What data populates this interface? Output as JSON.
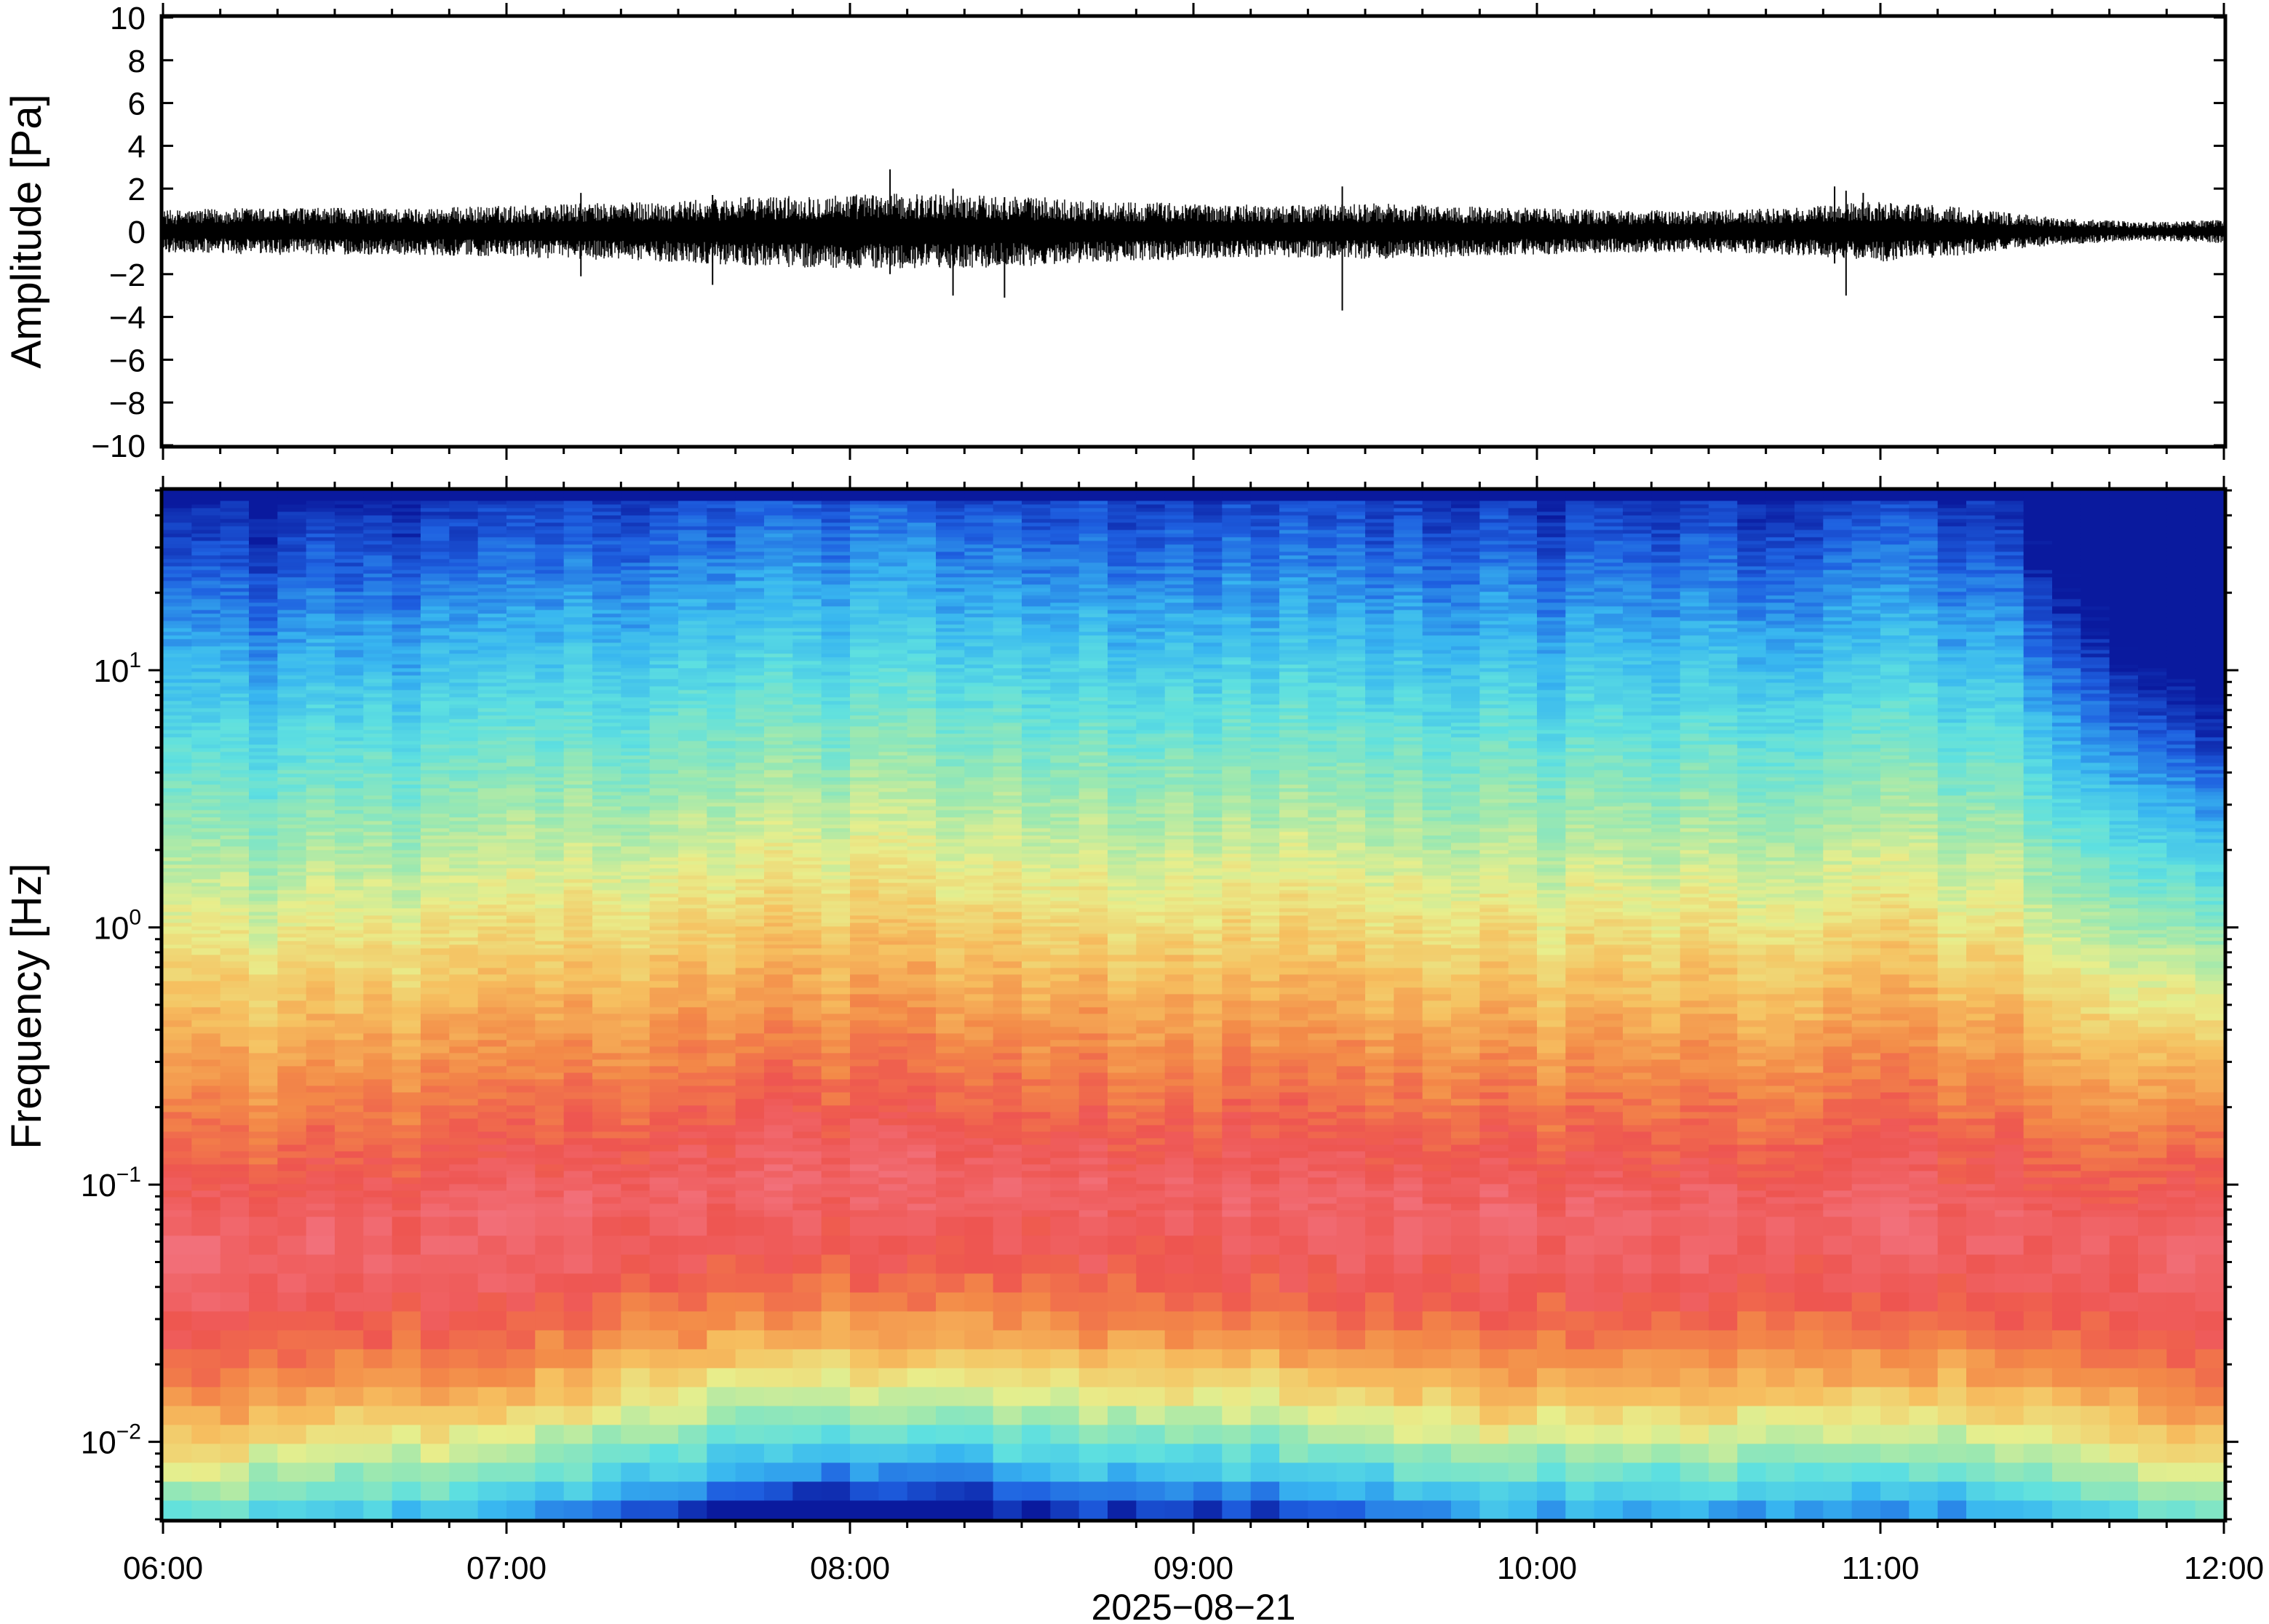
{
  "chart_data": [
    {
      "type": "line",
      "panel": "waveform",
      "ylabel": "Amplitude [Pa]",
      "ylim": [
        -10,
        10
      ],
      "yticks": [
        10,
        8,
        6,
        4,
        2,
        0,
        -2,
        -4,
        -6,
        -8,
        -10
      ],
      "ytick_labels": [
        "10",
        "8",
        "6",
        "4",
        "2",
        "0",
        "−2",
        "−4",
        "−6",
        "−8",
        "−10"
      ],
      "xlim": [
        "06:00",
        "12:00"
      ],
      "envelope": {
        "description_free_values": true,
        "x": [
          "06:00",
          "06:15",
          "06:30",
          "06:45",
          "07:00",
          "07:15",
          "07:30",
          "07:45",
          "08:00",
          "08:15",
          "08:30",
          "08:45",
          "09:00",
          "09:15",
          "09:30",
          "09:45",
          "10:00",
          "10:15",
          "10:30",
          "10:45",
          "11:00",
          "11:15",
          "11:30",
          "11:45",
          "12:00"
        ],
        "amplitude": [
          0.9,
          1.0,
          1.0,
          1.0,
          1.1,
          1.2,
          1.3,
          1.5,
          1.6,
          1.6,
          1.5,
          1.3,
          1.2,
          1.1,
          1.2,
          1.1,
          1.0,
          0.9,
          0.9,
          1.0,
          1.3,
          1.0,
          0.6,
          0.4,
          0.5
        ]
      },
      "spikes": [
        {
          "x": "07:13",
          "min": -2.1,
          "max": 1.8
        },
        {
          "x": "07:36",
          "min": -2.5,
          "max": 1.7
        },
        {
          "x": "08:07",
          "min": -2.0,
          "max": 2.9
        },
        {
          "x": "08:18",
          "min": -3.0,
          "max": 2.0
        },
        {
          "x": "08:27",
          "min": -3.1,
          "max": 1.6
        },
        {
          "x": "09:26",
          "min": -3.7,
          "max": 2.1
        },
        {
          "x": "10:52",
          "min": -1.5,
          "max": 2.1
        },
        {
          "x": "10:54",
          "min": -3.0,
          "max": 1.9
        },
        {
          "x": "10:57",
          "min": -1.2,
          "max": 1.8
        }
      ],
      "color": "#000000"
    },
    {
      "type": "heatmap",
      "panel": "spectrogram",
      "ylabel": "Frequency [Hz]",
      "yscale": "log",
      "ylim": [
        0.005,
        50
      ],
      "yticks": [
        0.01,
        0.1,
        1,
        10
      ],
      "ytick_labels": [
        {
          "base": "10",
          "exp": "−2"
        },
        {
          "base": "10",
          "exp": "−1"
        },
        {
          "base": "10",
          "exp": "0"
        },
        {
          "base": "10",
          "exp": "1"
        }
      ],
      "xlim": [
        "06:00",
        "12:00"
      ],
      "xticks": [
        "06:00",
        "07:00",
        "08:00",
        "09:00",
        "10:00",
        "11:00",
        "12:00"
      ],
      "xlabel": "2025−08−21",
      "colormap": [
        "#0a1a9e",
        "#1e5fe0",
        "#38b6f0",
        "#5ee0e0",
        "#9ce8b0",
        "#e8ee8c",
        "#f6c060",
        "#f38a48",
        "#ee5550",
        "#f2707a"
      ],
      "peak_frequency_hz": [
        0.06,
        0.06,
        0.07,
        0.07,
        0.08,
        0.09,
        0.1,
        0.12,
        0.12,
        0.12,
        0.11,
        0.1,
        0.1,
        0.1,
        0.09,
        0.08,
        0.08,
        0.08,
        0.08,
        0.08,
        0.09,
        0.08,
        0.07,
        0.06,
        0.06
      ],
      "peak_times": [
        "06:00",
        "06:15",
        "06:30",
        "06:45",
        "07:00",
        "07:15",
        "07:30",
        "07:45",
        "08:00",
        "08:15",
        "08:30",
        "08:45",
        "09:00",
        "09:15",
        "09:30",
        "09:45",
        "10:00",
        "10:15",
        "10:30",
        "10:45",
        "11:00",
        "11:15",
        "11:30",
        "11:45",
        "12:00"
      ]
    }
  ]
}
